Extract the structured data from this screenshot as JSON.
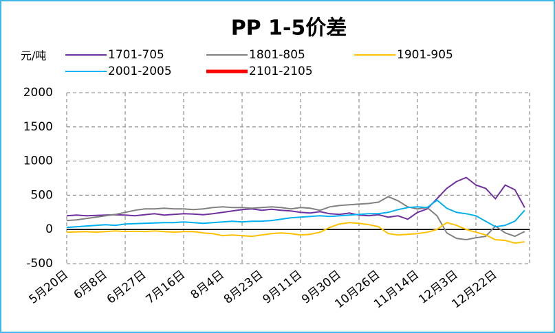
{
  "chart_data": {
    "type": "line",
    "title": "PP 1-5价差",
    "y_label": "元/吨",
    "categories": [
      "5月20日",
      null,
      null,
      null,
      "6月8日",
      null,
      null,
      null,
      "6月27日",
      null,
      null,
      null,
      "7月16日",
      null,
      null,
      null,
      "8月4日",
      null,
      null,
      null,
      "8月23日",
      null,
      null,
      null,
      "9月11日",
      null,
      null,
      null,
      "9月30日",
      null,
      null,
      null,
      "10月26日",
      null,
      null,
      null,
      "11月14日",
      null,
      null,
      null,
      "12月3日",
      null,
      null,
      null,
      "12月22日",
      null,
      null,
      null
    ],
    "series": [
      {
        "name": "1701-705",
        "color": "#7030a0",
        "values": [
          200,
          210,
          200,
          205,
          210,
          215,
          210,
          200,
          215,
          230,
          210,
          220,
          230,
          225,
          215,
          230,
          250,
          270,
          290,
          300,
          280,
          295,
          280,
          270,
          250,
          240,
          260,
          230,
          220,
          240,
          210,
          200,
          215,
          180,
          200,
          150,
          250,
          300,
          450,
          600,
          700,
          760,
          650,
          600,
          450,
          650,
          580,
          320
        ]
      },
      {
        "name": "1801-805",
        "color": "#808080",
        "values": [
          130,
          140,
          160,
          180,
          200,
          220,
          250,
          280,
          300,
          300,
          310,
          300,
          300,
          290,
          300,
          320,
          330,
          320,
          320,
          310,
          320,
          330,
          320,
          300,
          320,
          310,
          280,
          330,
          350,
          360,
          370,
          380,
          400,
          480,
          420,
          330,
          300,
          320,
          200,
          -50,
          -130,
          -150,
          -120,
          -100,
          50,
          -50,
          -100,
          -30
        ]
      },
      {
        "name": "1901-905",
        "color": "#ffc000",
        "values": [
          -40,
          -35,
          -30,
          -40,
          -30,
          -20,
          -30,
          -25,
          -30,
          -20,
          -30,
          -40,
          -30,
          -30,
          -50,
          -60,
          -90,
          -80,
          -90,
          -100,
          -80,
          -60,
          -50,
          -60,
          -80,
          -70,
          -40,
          30,
          80,
          100,
          90,
          70,
          40,
          -60,
          -80,
          -70,
          -60,
          -40,
          0,
          100,
          60,
          0,
          -40,
          -80,
          -150,
          -160,
          -200,
          -180
        ]
      },
      {
        "name": "2001-2005",
        "color": "#00b0f0",
        "values": [
          30,
          40,
          50,
          60,
          70,
          60,
          80,
          85,
          90,
          95,
          100,
          100,
          110,
          100,
          90,
          100,
          110,
          120,
          110,
          120,
          120,
          130,
          150,
          170,
          180,
          190,
          200,
          190,
          200,
          210,
          220,
          230,
          230,
          250,
          290,
          320,
          330,
          320,
          430,
          310,
          250,
          230,
          200,
          120,
          40,
          60,
          120,
          280
        ]
      },
      {
        "name": "2101-2105",
        "color": "#ff0000",
        "values": [
          null,
          null,
          null,
          null,
          null,
          null,
          null,
          null,
          null,
          null,
          null,
          null,
          null,
          null,
          null,
          null,
          null,
          null,
          null,
          null,
          null,
          null,
          null,
          null,
          null,
          null,
          null,
          null,
          null,
          null,
          null,
          null,
          null,
          null,
          null,
          null,
          null,
          null,
          null,
          null,
          null,
          null,
          null,
          null,
          null,
          null,
          null,
          null
        ]
      }
    ],
    "ylim": [
      -500,
      2000
    ],
    "yticks": [
      -500,
      0,
      500,
      1000,
      1500,
      2000
    ],
    "grid": true
  }
}
